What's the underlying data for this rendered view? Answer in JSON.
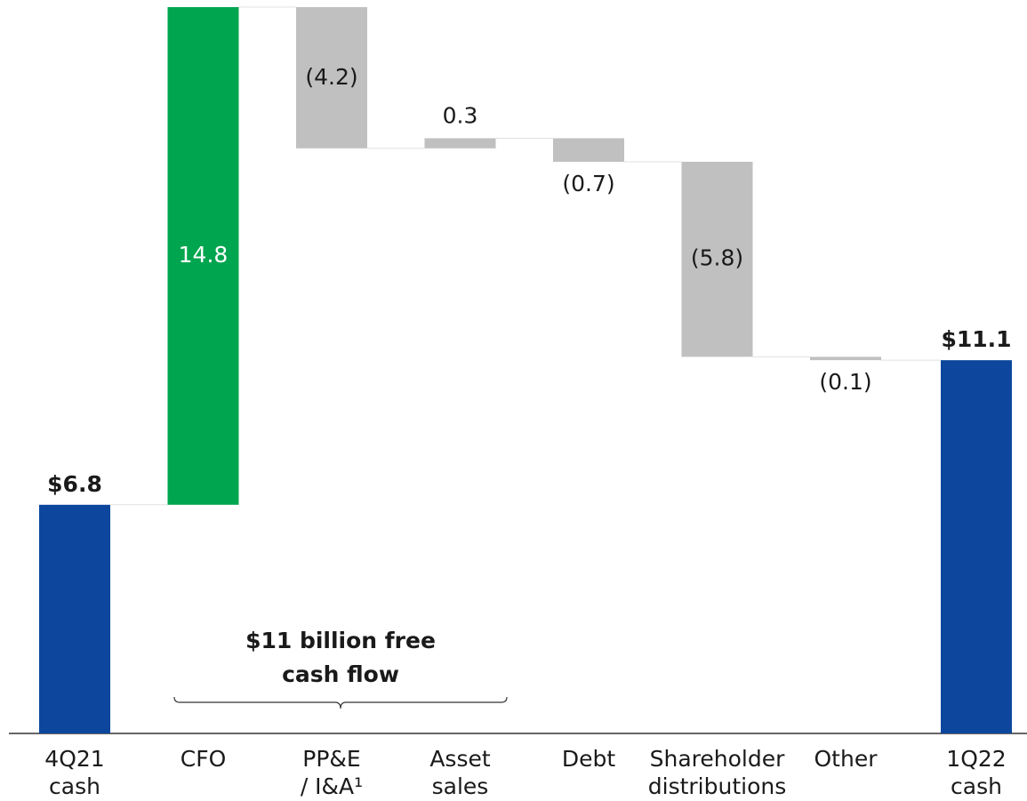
{
  "chart_data": {
    "type": "waterfall",
    "categories": [
      [
        "4Q21",
        "cash"
      ],
      [
        "CFO"
      ],
      [
        "PP&E",
        "/ I&A¹"
      ],
      [
        "Asset",
        "sales"
      ],
      [
        "Debt"
      ],
      [
        "Shareholder",
        "distributions"
      ],
      [
        "Other"
      ],
      [
        "1Q22",
        "cash"
      ]
    ],
    "values": [
      6.8,
      14.8,
      -4.2,
      0.3,
      -0.7,
      -5.8,
      -0.1,
      11.1
    ],
    "value_labels": [
      "$6.8",
      "14.8",
      "(4.2)",
      "0.3",
      "(0.7)",
      "(5.8)",
      "(0.1)",
      "$11.1"
    ],
    "colors": [
      "#0c479d",
      "#00a54f",
      "#c0c0c0",
      "#c0c0c0",
      "#c0c0c0",
      "#c0c0c0",
      "#c0c0c0",
      "#0c479d"
    ],
    "ylim": [
      0,
      21.6
    ],
    "annotation": [
      "$11 billion free",
      "cash flow"
    ]
  }
}
